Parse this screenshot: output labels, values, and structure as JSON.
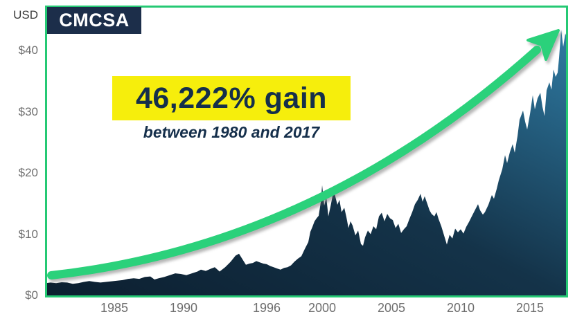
{
  "header": {
    "currency_label": "USD",
    "ticker": "CMCSA"
  },
  "annotation": {
    "headline": "46,222% gain",
    "subtitle": "between 1980 and 2017",
    "highlight_color": "#f6ee0c",
    "text_color": "#152f4b"
  },
  "colors": {
    "border_green": "#25c974",
    "arrow_green": "#2bd17b",
    "area_dark": "#0c1f30",
    "area_mid": "#143349",
    "area_light": "#2f7ba3",
    "badge_navy": "#1c2e4a",
    "axis_gray": "#6e6e6e"
  },
  "chart_data": {
    "type": "area",
    "title": "CMCSA stock price, 1980 to 2017 (USD)",
    "xlabel": "",
    "ylabel": "USD",
    "x_range": [
      1980,
      2017.75
    ],
    "ylim": [
      0,
      47.3
    ],
    "grid": false,
    "legend_position": "none",
    "y_ticks": [
      {
        "label": "$0",
        "value": 0
      },
      {
        "label": "$10",
        "value": 10
      },
      {
        "label": "$20",
        "value": 20
      },
      {
        "label": "$30",
        "value": 30
      },
      {
        "label": "$40",
        "value": 40
      }
    ],
    "x_ticks": [
      {
        "label": "1985",
        "year": 1985
      },
      {
        "label": "1990",
        "year": 1990
      },
      {
        "label": "1996",
        "year": 1996
      },
      {
        "label": "2000",
        "year": 2000
      },
      {
        "label": "2005",
        "year": 2005
      },
      {
        "label": "2010",
        "year": 2010
      },
      {
        "label": "2015",
        "year": 2015
      }
    ],
    "series": [
      {
        "name": "CMCSA",
        "points": [
          [
            1980.0,
            2.0
          ],
          [
            1980.4,
            2.1
          ],
          [
            1980.8,
            2.0
          ],
          [
            1981.2,
            2.15
          ],
          [
            1981.6,
            2.1
          ],
          [
            1982.0,
            1.9
          ],
          [
            1982.4,
            2.0
          ],
          [
            1982.8,
            2.2
          ],
          [
            1983.2,
            2.35
          ],
          [
            1983.6,
            2.2
          ],
          [
            1984.0,
            2.1
          ],
          [
            1984.4,
            2.2
          ],
          [
            1984.8,
            2.3
          ],
          [
            1985.2,
            2.4
          ],
          [
            1985.6,
            2.5
          ],
          [
            1986.0,
            2.7
          ],
          [
            1986.4,
            2.8
          ],
          [
            1986.8,
            2.7
          ],
          [
            1987.2,
            3.0
          ],
          [
            1987.6,
            3.1
          ],
          [
            1987.9,
            2.6
          ],
          [
            1988.2,
            2.8
          ],
          [
            1988.6,
            3.0
          ],
          [
            1989.0,
            3.3
          ],
          [
            1989.4,
            3.6
          ],
          [
            1989.8,
            3.5
          ],
          [
            1990.2,
            3.3
          ],
          [
            1990.6,
            3.6
          ],
          [
            1991.0,
            3.9
          ],
          [
            1991.25,
            4.2
          ],
          [
            1991.6,
            4.0
          ],
          [
            1992.0,
            4.4
          ],
          [
            1992.25,
            4.6
          ],
          [
            1992.6,
            3.9
          ],
          [
            1993.0,
            4.6
          ],
          [
            1993.4,
            5.5
          ],
          [
            1993.75,
            6.5
          ],
          [
            1994.0,
            6.8
          ],
          [
            1994.25,
            5.9
          ],
          [
            1994.5,
            5.0
          ],
          [
            1994.75,
            5.2
          ],
          [
            1995.0,
            5.3
          ],
          [
            1995.25,
            5.6
          ],
          [
            1995.5,
            5.4
          ],
          [
            1995.75,
            5.2
          ],
          [
            1996.0,
            5.1
          ],
          [
            1996.25,
            4.8
          ],
          [
            1996.5,
            4.6
          ],
          [
            1996.75,
            4.4
          ],
          [
            1997.0,
            4.2
          ],
          [
            1997.25,
            4.5
          ],
          [
            1997.5,
            4.6
          ],
          [
            1997.75,
            4.9
          ],
          [
            1998.0,
            5.5
          ],
          [
            1998.25,
            6.0
          ],
          [
            1998.5,
            6.4
          ],
          [
            1998.75,
            7.6
          ],
          [
            1999.0,
            8.7
          ],
          [
            1999.15,
            10.4
          ],
          [
            1999.3,
            11.2
          ],
          [
            1999.45,
            12.1
          ],
          [
            1999.6,
            12.6
          ],
          [
            1999.75,
            13.0
          ],
          [
            1999.9,
            15.2
          ],
          [
            2000.0,
            18.0
          ],
          [
            2000.15,
            14.7
          ],
          [
            2000.3,
            16.0
          ],
          [
            2000.45,
            12.9
          ],
          [
            2000.6,
            14.5
          ],
          [
            2000.75,
            16.2
          ],
          [
            2000.9,
            16.6
          ],
          [
            2001.1,
            14.8
          ],
          [
            2001.25,
            15.6
          ],
          [
            2001.4,
            13.6
          ],
          [
            2001.6,
            14.3
          ],
          [
            2001.75,
            12.8
          ],
          [
            2001.9,
            11.0
          ],
          [
            2002.05,
            12.1
          ],
          [
            2002.2,
            11.4
          ],
          [
            2002.4,
            9.8
          ],
          [
            2002.6,
            10.6
          ],
          [
            2002.8,
            8.4
          ],
          [
            2002.95,
            8.1
          ],
          [
            2003.1,
            9.5
          ],
          [
            2003.3,
            10.6
          ],
          [
            2003.5,
            10.0
          ],
          [
            2003.7,
            11.3
          ],
          [
            2003.9,
            10.8
          ],
          [
            2004.1,
            12.9
          ],
          [
            2004.3,
            13.5
          ],
          [
            2004.5,
            12.1
          ],
          [
            2004.7,
            13.3
          ],
          [
            2004.9,
            12.6
          ],
          [
            2005.1,
            12.3
          ],
          [
            2005.3,
            11.0
          ],
          [
            2005.5,
            11.7
          ],
          [
            2005.7,
            10.2
          ],
          [
            2005.9,
            10.8
          ],
          [
            2006.1,
            11.3
          ],
          [
            2006.3,
            12.5
          ],
          [
            2006.5,
            13.6
          ],
          [
            2006.7,
            14.9
          ],
          [
            2006.9,
            15.6
          ],
          [
            2007.1,
            16.6
          ],
          [
            2007.25,
            15.3
          ],
          [
            2007.4,
            16.2
          ],
          [
            2007.6,
            14.9
          ],
          [
            2007.75,
            13.9
          ],
          [
            2007.9,
            13.3
          ],
          [
            2008.1,
            12.9
          ],
          [
            2008.25,
            13.6
          ],
          [
            2008.4,
            12.5
          ],
          [
            2008.6,
            11.3
          ],
          [
            2008.8,
            9.8
          ],
          [
            2009.0,
            8.3
          ],
          [
            2009.2,
            9.9
          ],
          [
            2009.4,
            9.3
          ],
          [
            2009.6,
            10.9
          ],
          [
            2009.8,
            10.3
          ],
          [
            2010.0,
            10.8
          ],
          [
            2010.2,
            10.1
          ],
          [
            2010.4,
            11.2
          ],
          [
            2010.6,
            12.0
          ],
          [
            2010.8,
            12.9
          ],
          [
            2011.0,
            13.8
          ],
          [
            2011.25,
            14.9
          ],
          [
            2011.4,
            13.9
          ],
          [
            2011.6,
            13.2
          ],
          [
            2011.75,
            13.6
          ],
          [
            2012.0,
            14.8
          ],
          [
            2012.25,
            16.4
          ],
          [
            2012.4,
            15.8
          ],
          [
            2012.6,
            17.4
          ],
          [
            2012.75,
            18.8
          ],
          [
            2013.0,
            20.6
          ],
          [
            2013.2,
            22.9
          ],
          [
            2013.35,
            21.6
          ],
          [
            2013.55,
            23.4
          ],
          [
            2013.75,
            24.7
          ],
          [
            2013.9,
            23.3
          ],
          [
            2014.1,
            26.0
          ],
          [
            2014.25,
            28.7
          ],
          [
            2014.5,
            30.2
          ],
          [
            2014.65,
            28.4
          ],
          [
            2014.8,
            27.1
          ],
          [
            2015.0,
            29.6
          ],
          [
            2015.2,
            32.7
          ],
          [
            2015.35,
            30.4
          ],
          [
            2015.55,
            32.2
          ],
          [
            2015.75,
            33.1
          ],
          [
            2015.9,
            30.8
          ],
          [
            2016.05,
            29.3
          ],
          [
            2016.2,
            33.5
          ],
          [
            2016.4,
            34.8
          ],
          [
            2016.55,
            33.6
          ],
          [
            2016.7,
            36.9
          ],
          [
            2016.85,
            35.7
          ],
          [
            2017.0,
            36.4
          ],
          [
            2017.1,
            38.8
          ],
          [
            2017.25,
            43.4
          ],
          [
            2017.4,
            40.6
          ],
          [
            2017.55,
            42.8
          ],
          [
            2017.7,
            41.9
          ],
          [
            2017.75,
            42.2
          ]
        ]
      }
    ],
    "annotations": [
      {
        "type": "trend-arrow",
        "from_year": 1980.4,
        "from_value": 3.3,
        "to_year": 2016.5,
        "to_value": 43.3
      }
    ]
  }
}
